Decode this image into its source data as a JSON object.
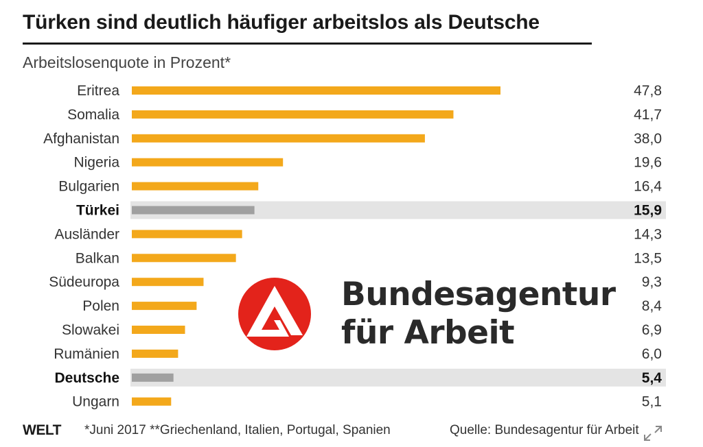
{
  "title": "Türken sind deutlich häufiger arbeitslos als Deutsche",
  "subtitle": "Arbeitslosenquote in Prozent*",
  "colors": {
    "bar": "#f3a81b",
    "highlight_bar": "#a0a0a0",
    "highlight_band": "#e4e4e4",
    "logo_red": "#e3231b"
  },
  "chart_data": {
    "type": "bar",
    "orientation": "horizontal",
    "categories": [
      "Eritrea",
      "Somalia",
      "Afghanistan",
      "Nigeria",
      "Bulgarien",
      "Türkei",
      "Ausländer",
      "Balkan",
      "Südeuropa",
      "Polen",
      "Slowakei",
      "Rumänien",
      "Deutsche",
      "Ungarn"
    ],
    "values": [
      47.8,
      41.7,
      38.0,
      19.6,
      16.4,
      15.9,
      14.3,
      13.5,
      9.3,
      8.4,
      6.9,
      6.0,
      5.4,
      5.1
    ],
    "value_labels": [
      "47,8",
      "41,7",
      "38,0",
      "19,6",
      "16,4",
      "15,9",
      "14,3",
      "13,5",
      "9,3",
      "8,4",
      "6,9",
      "6,0",
      "5,4",
      "5,1"
    ],
    "highlighted": [
      "Türkei",
      "Deutsche"
    ],
    "xlim": [
      0,
      50
    ],
    "grid": false,
    "legend": "none"
  },
  "logo": {
    "line1": "Bundesagentur",
    "line2": "für Arbeit"
  },
  "footer": {
    "brand": "WELT",
    "footnote": "*Juni 2017  **Griechenland, Italien, Portugal, Spanien",
    "source": "Quelle: Bundesagentur für Arbeit"
  },
  "icons": {
    "expand": "expand-arrows-icon",
    "logo": "ba-logo-icon"
  }
}
